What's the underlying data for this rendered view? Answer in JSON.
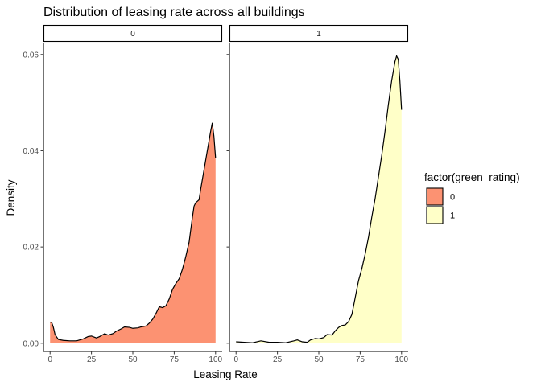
{
  "chart_data": {
    "type": "area",
    "title": "Distribution of leasing rate across all buildings",
    "xlabel": "Leasing Rate",
    "ylabel": "Density",
    "xlim": [
      -4,
      104
    ],
    "ylim": [
      -0.0017,
      0.0623
    ],
    "xticks": [
      0,
      25,
      50,
      75,
      100
    ],
    "yticks": [
      0.0,
      0.02,
      0.04,
      0.06
    ],
    "ytick_labels": [
      "0.00",
      "0.02",
      "0.04",
      "0.06"
    ],
    "grid": false,
    "facets": [
      "0",
      "1"
    ],
    "legend": {
      "title": "factor(green_rating)",
      "position": "right",
      "entries": [
        {
          "label": "0",
          "color": "#fc9272"
        },
        {
          "label": "1",
          "color": "#ffffc8"
        }
      ]
    },
    "series": [
      {
        "name": "0",
        "color": "#fc9272",
        "x": [
          0,
          1,
          2,
          3,
          5,
          8,
          12,
          16,
          20,
          23,
          25,
          28,
          30,
          33,
          35,
          38,
          40,
          43,
          45,
          48,
          50,
          53,
          55,
          58,
          60,
          62,
          64,
          66,
          68,
          70,
          72,
          74,
          76,
          78,
          80,
          82,
          84,
          86,
          87,
          88,
          90,
          91,
          92,
          94,
          96,
          97,
          98,
          99,
          100
        ],
        "y": [
          0.0044,
          0.0043,
          0.0033,
          0.0018,
          0.0008,
          0.0006,
          0.0005,
          0.0005,
          0.0009,
          0.0014,
          0.0015,
          0.0011,
          0.0014,
          0.002,
          0.0017,
          0.002,
          0.0025,
          0.003,
          0.0034,
          0.0033,
          0.0031,
          0.0032,
          0.0034,
          0.0036,
          0.0042,
          0.005,
          0.0062,
          0.0076,
          0.0074,
          0.0078,
          0.0092,
          0.0112,
          0.0124,
          0.0134,
          0.0154,
          0.018,
          0.021,
          0.0262,
          0.0285,
          0.0292,
          0.0298,
          0.032,
          0.034,
          0.038,
          0.042,
          0.044,
          0.0458,
          0.043,
          0.0385
        ]
      },
      {
        "name": "1",
        "color": "#ffffc8",
        "x": [
          0,
          5,
          10,
          15,
          20,
          25,
          30,
          35,
          37,
          40,
          43,
          45,
          48,
          50,
          53,
          55,
          58,
          60,
          62,
          64,
          66,
          68,
          70,
          72,
          74,
          76,
          78,
          80,
          82,
          84,
          86,
          88,
          90,
          92,
          94,
          96,
          97,
          98,
          99,
          100
        ],
        "y": [
          0.0003,
          0.0002,
          0.0001,
          0.0005,
          0.0002,
          0.0002,
          0.0001,
          0.0005,
          0.0007,
          0.0003,
          0.0002,
          0.0007,
          0.001,
          0.0009,
          0.0012,
          0.0018,
          0.0017,
          0.0026,
          0.0033,
          0.0037,
          0.0038,
          0.0045,
          0.006,
          0.0095,
          0.013,
          0.0155,
          0.0185,
          0.022,
          0.0262,
          0.03,
          0.0345,
          0.039,
          0.044,
          0.0495,
          0.0545,
          0.0585,
          0.0597,
          0.059,
          0.0545,
          0.0485
        ]
      }
    ]
  }
}
